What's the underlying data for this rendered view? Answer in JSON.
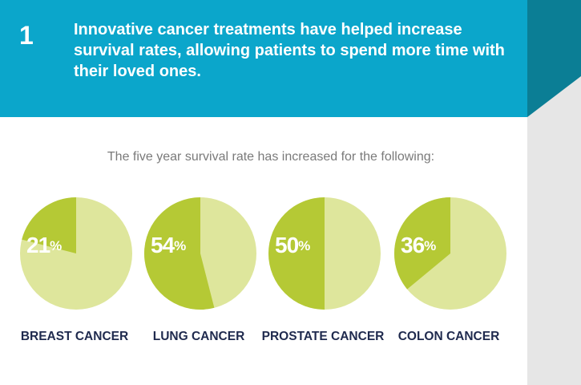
{
  "header": {
    "number": "1",
    "title": "Innovative cancer treatments have helped increase survival rates, allowing patients to spend more time with their loved ones."
  },
  "subtitle": "The five year survival rate has increased for the following:",
  "chart_data": [
    {
      "type": "pie",
      "title": "BREAST CANCER",
      "values": [
        21
      ],
      "value_labels": [
        "21%"
      ],
      "total": 100,
      "color": "#b5c935",
      "rest_color": "#dee69c"
    },
    {
      "type": "pie",
      "title": "LUNG CANCER",
      "values": [
        54
      ],
      "value_labels": [
        "54%"
      ],
      "total": 100,
      "color": "#b5c935",
      "rest_color": "#dee69c"
    },
    {
      "type": "pie",
      "title": "PROSTATE CANCER",
      "values": [
        50
      ],
      "value_labels": [
        "50%"
      ],
      "total": 100,
      "color": "#b5c935",
      "rest_color": "#dee69c"
    },
    {
      "type": "pie",
      "title": "COLON CANCER",
      "values": [
        36
      ],
      "value_labels": [
        "36%"
      ],
      "total": 100,
      "color": "#b5c935",
      "rest_color": "#dee69c"
    }
  ]
}
